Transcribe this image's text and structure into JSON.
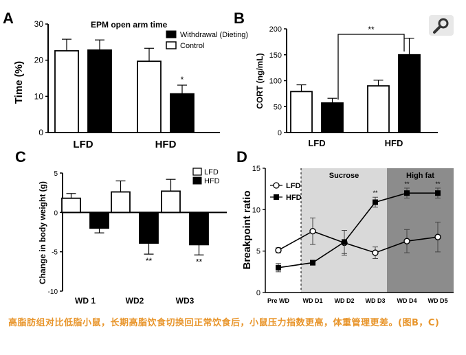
{
  "chart_data": [
    {
      "panel": "A",
      "type": "bar",
      "title": "EPM open arm time",
      "ylabel": "Time (%)",
      "ylim": [
        0,
        30
      ],
      "yticks": [
        0,
        10,
        20,
        30
      ],
      "categories": [
        "LFD",
        "HFD"
      ],
      "series": [
        {
          "name": "Control",
          "values": [
            22.6,
            19.7
          ],
          "err": [
            3.2,
            3.6
          ],
          "fill": "#ffffff"
        },
        {
          "name": "Withdrawal (Dieting)",
          "values": [
            22.8,
            10.7
          ],
          "err": [
            2.8,
            2.4
          ],
          "fill": "#000000"
        }
      ],
      "annotations": [
        {
          "category": "HFD",
          "series": "Withdrawal (Dieting)",
          "text": "*"
        }
      ],
      "legend": "top-right"
    },
    {
      "panel": "B",
      "type": "bar",
      "ylabel": "CORT (ng/mL)",
      "ylim": [
        0,
        200
      ],
      "yticks": [
        0,
        50,
        100,
        150,
        200
      ],
      "categories": [
        "LFD",
        "HFD"
      ],
      "series": [
        {
          "values": [
            79,
            90
          ],
          "err": [
            13,
            11
          ],
          "fill": "#ffffff"
        },
        {
          "values": [
            57,
            150
          ],
          "err": [
            9,
            32
          ],
          "fill": "#000000"
        }
      ],
      "significance": "**"
    },
    {
      "panel": "C",
      "type": "bar",
      "ylabel": "Change in body weight (g)",
      "ylim": [
        -10,
        5
      ],
      "yticks": [
        -10,
        -5,
        0,
        5
      ],
      "categories": [
        "WD 1",
        "WD2",
        "WD3"
      ],
      "series": [
        {
          "name": "LFD",
          "values": [
            1.8,
            2.6,
            2.7
          ],
          "err": [
            0.6,
            1.4,
            1.5
          ],
          "fill": "#ffffff"
        },
        {
          "name": "HFD",
          "values": [
            -2.0,
            -3.9,
            -4.1
          ],
          "err": [
            0.6,
            1.4,
            1.3
          ],
          "fill": "#000000"
        }
      ],
      "annotations": [
        {
          "category": "WD2",
          "series": "HFD",
          "text": "**"
        },
        {
          "category": "WD3",
          "series": "HFD",
          "text": "**"
        }
      ],
      "legend": "top-right"
    },
    {
      "panel": "D",
      "type": "line",
      "ylabel": "Breakpoint ratio",
      "ylim": [
        0,
        15
      ],
      "yticks": [
        0,
        5,
        10,
        15
      ],
      "x": [
        "Pre WD",
        "WD D1",
        "WD D2",
        "WD D3",
        "WD D4",
        "WD D5"
      ],
      "regions": [
        {
          "label": "Sucrose",
          "from": "WD D1",
          "to": "WD D3",
          "color": "#d9d9d9"
        },
        {
          "label": "High fat",
          "from": "WD D4",
          "to": "WD D5",
          "color": "#8c8c8c"
        }
      ],
      "series": [
        {
          "name": "LFD",
          "marker": "open-circle",
          "values": [
            5.1,
            7.4,
            6.0,
            4.8,
            6.2,
            6.7
          ],
          "err": [
            0.3,
            1.6,
            1.5,
            0.7,
            1.4,
            1.8
          ]
        },
        {
          "name": "HFD",
          "marker": "filled-square",
          "values": [
            3.0,
            3.6,
            6.1,
            10.9,
            12.0,
            12.0
          ],
          "err": [
            0.5,
            0.3,
            1.4,
            0.6,
            0.6,
            0.6
          ]
        }
      ],
      "annotations": [
        {
          "x": "WD D3",
          "text": "**"
        },
        {
          "x": "WD D4",
          "text": "**"
        },
        {
          "x": "WD D5",
          "text": "**"
        }
      ],
      "legend": "top-left"
    }
  ],
  "panel_labels": {
    "a": "A",
    "b": "B",
    "c": "C",
    "d": "D"
  },
  "search_icon": "magnifier-icon",
  "caption_text": "高脂肪组对比低脂小鼠，长期高脂饮食切换回正常饮食后，小鼠压力指数更高，体重管理更差。(图B，C)"
}
